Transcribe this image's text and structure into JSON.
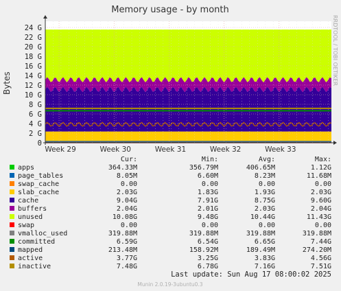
{
  "chart_data": {
    "type": "area",
    "title": "Memory usage - by month",
    "ylabel": "Bytes",
    "watermark": "RRDTOOL / TOBI OETIKER",
    "footer": "Munin 2.0.19-3ubuntu0.3",
    "ylim": [
      0,
      25
    ],
    "yunit": "G",
    "yticks": [
      0,
      2,
      4,
      6,
      8,
      10,
      12,
      14,
      16,
      18,
      20,
      22,
      24
    ],
    "ytick_labels": [
      "0",
      "2 G",
      "4 G",
      "6 G",
      "8 G",
      "10 G",
      "12 G",
      "14 G",
      "16 G",
      "18 G",
      "20 G",
      "22 G",
      "24 G"
    ],
    "x_ticks": [
      "Week 29",
      "Week 30",
      "Week 31",
      "Week 32",
      "Week 33"
    ],
    "x_range": [
      0,
      5.2
    ],
    "x_tick_positions": [
      0.25,
      1.25,
      2.25,
      3.25,
      4.25
    ],
    "grid": true,
    "legend_headers": [
      "Cur:",
      "Min:",
      "Avg:",
      "Max:"
    ],
    "series": [
      {
        "name": "apps",
        "color": "#00cc00",
        "cur": "364.33M",
        "min": "356.79M",
        "avg": "406.65M",
        "max": "1.12G",
        "value": 0.41
      },
      {
        "name": "page_tables",
        "color": "#0066b3",
        "cur": "8.05M",
        "min": "6.60M",
        "avg": "8.23M",
        "max": "11.68M",
        "value": 0.008
      },
      {
        "name": "swap_cache",
        "color": "#ff8000",
        "cur": "0.00",
        "min": "0.00",
        "avg": "0.00",
        "max": "0.00",
        "value": 0
      },
      {
        "name": "slab_cache",
        "color": "#ffcc00",
        "cur": "2.03G",
        "min": "1.83G",
        "avg": "1.93G",
        "max": "2.03G",
        "value": 1.93
      },
      {
        "name": "cache",
        "color": "#330099",
        "cur": "9.04G",
        "min": "7.91G",
        "avg": "8.75G",
        "max": "9.60G",
        "value": 8.75
      },
      {
        "name": "buffers",
        "color": "#990099",
        "cur": "2.04G",
        "min": "2.01G",
        "avg": "2.03G",
        "max": "2.04G",
        "value": 2.03
      },
      {
        "name": "unused",
        "color": "#ccff00",
        "cur": "10.08G",
        "min": "9.48G",
        "avg": "10.44G",
        "max": "11.43G",
        "value": 10.44
      },
      {
        "name": "swap",
        "color": "#ff0000",
        "cur": "0.00",
        "min": "0.00",
        "avg": "0.00",
        "max": "0.00",
        "value": 0
      },
      {
        "name": "vmalloc_used",
        "color": "#808080",
        "cur": "319.88M",
        "min": "319.88M",
        "avg": "319.88M",
        "max": "319.88M",
        "value": 0.32
      },
      {
        "name": "committed",
        "color": "#008f00",
        "cur": "6.59G",
        "min": "6.54G",
        "avg": "6.65G",
        "max": "7.44G",
        "value": 6.65
      },
      {
        "name": "mapped",
        "color": "#00487d",
        "cur": "213.48M",
        "min": "158.92M",
        "avg": "189.49M",
        "max": "274.20M",
        "value": 0.19
      },
      {
        "name": "active",
        "color": "#b35a00",
        "cur": "3.77G",
        "min": "3.25G",
        "avg": "3.83G",
        "max": "4.56G",
        "value": 3.83
      },
      {
        "name": "inactive",
        "color": "#b38f00",
        "cur": "7.48G",
        "min": "6.78G",
        "avg": "7.16G",
        "max": "7.51G",
        "value": 7.16
      }
    ],
    "last_update": "Last update:  Sun Aug 17 08:00:02 2025"
  }
}
